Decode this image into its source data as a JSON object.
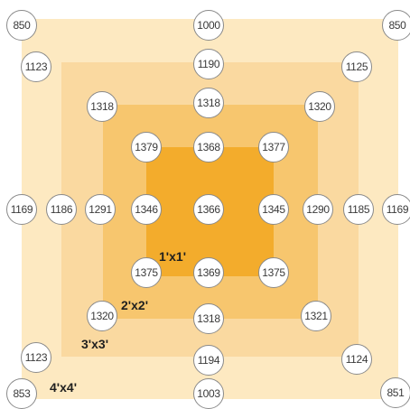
{
  "zone_labels": [
    "1'x1'",
    "2'x2'",
    "3'x3'",
    "4'x4'"
  ],
  "readings": [
    [
      "850",
      "1000",
      "850"
    ],
    [
      "1123",
      "1190",
      "1125"
    ],
    [
      "1318",
      "1318",
      "1320"
    ],
    [
      "1379",
      "1368",
      "1377"
    ],
    [
      "1169",
      "1186",
      "1291",
      "1346",
      "1366",
      "1345",
      "1290",
      "1185",
      "1169"
    ],
    [
      "1375",
      "1369",
      "1375"
    ],
    [
      "1320",
      "1318",
      "1321"
    ],
    [
      "1123",
      "1194",
      "1124"
    ],
    [
      "853",
      "1003",
      "851"
    ]
  ],
  "colors": {
    "zone_1x1": "#f3ac2c",
    "zone_2x2": "#f7c66e",
    "zone_3x3": "#fad9a0",
    "zone_4x4": "#fde9c1"
  }
}
